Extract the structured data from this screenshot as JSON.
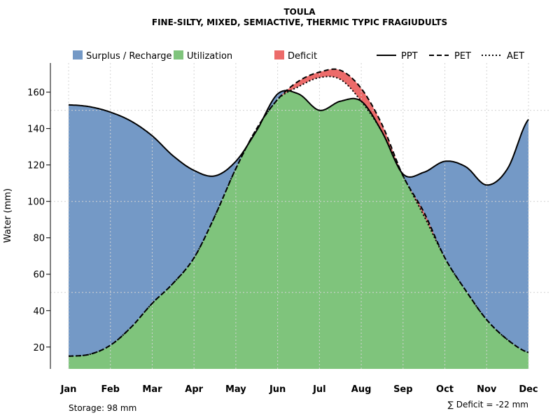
{
  "chart_data": {
    "type": "area",
    "title": "TOULA",
    "subtitle": "FINE-SILTY, MIXED, SEMIACTIVE, THERMIC TYPIC FRAGIUDULTS",
    "xlabel": "",
    "ylabel": "Water (mm)",
    "categories": [
      "Jan",
      "Feb",
      "Mar",
      "Apr",
      "May",
      "Jun",
      "Jul",
      "Aug",
      "Sep",
      "Oct",
      "Nov",
      "Dec"
    ],
    "x": [
      1,
      1.5,
      2,
      2.5,
      3,
      3.5,
      4,
      4.5,
      5,
      5.5,
      6,
      6.5,
      7,
      7.5,
      8,
      8.5,
      9,
      9.5,
      10,
      10.5,
      11,
      11.5,
      12
    ],
    "ylim": [
      8,
      176
    ],
    "yticks": [
      20,
      40,
      60,
      80,
      100,
      120,
      140,
      160
    ],
    "grid": true,
    "series": [
      {
        "name": "PPT",
        "line": "solid",
        "values": [
          153,
          152,
          149,
          144,
          136,
          125,
          117,
          114,
          122,
          139,
          159,
          159,
          150,
          155,
          155,
          138,
          115,
          116,
          122,
          119,
          109,
          118,
          145
        ]
      },
      {
        "name": "PET",
        "line": "dashed",
        "values": [
          15,
          16,
          21,
          31,
          44,
          55,
          69,
          92,
          118,
          140,
          156,
          166,
          171,
          172,
          162,
          142,
          114,
          94,
          69,
          51,
          35,
          24,
          17
        ]
      },
      {
        "name": "AET",
        "line": "dotted",
        "values": [
          15,
          16,
          21,
          31,
          44,
          55,
          69,
          92,
          118,
          140,
          156,
          163,
          168,
          167,
          155,
          138,
          114,
          92,
          69,
          51,
          35,
          24,
          17
        ]
      }
    ],
    "legend": {
      "position": "top",
      "fills": [
        {
          "label": "Surplus / Recharge",
          "color": "#7499c6"
        },
        {
          "label": "Utilization",
          "color": "#7fc47c"
        },
        {
          "label": "Deficit",
          "color": "#ec6b6a"
        }
      ],
      "lines": [
        {
          "label": "PPT",
          "style": "solid"
        },
        {
          "label": "PET",
          "style": "dashed"
        },
        {
          "label": "AET",
          "style": "dotted"
        }
      ]
    },
    "colors": {
      "surplus": "#7499c6",
      "utilization": "#7fc47c",
      "deficit": "#ec6b6a",
      "line": "#000000",
      "grid": "#d3d3d3"
    },
    "storage_label": "Storage: 98 mm",
    "deficit_label": "∑ Deficit = -22 mm"
  }
}
